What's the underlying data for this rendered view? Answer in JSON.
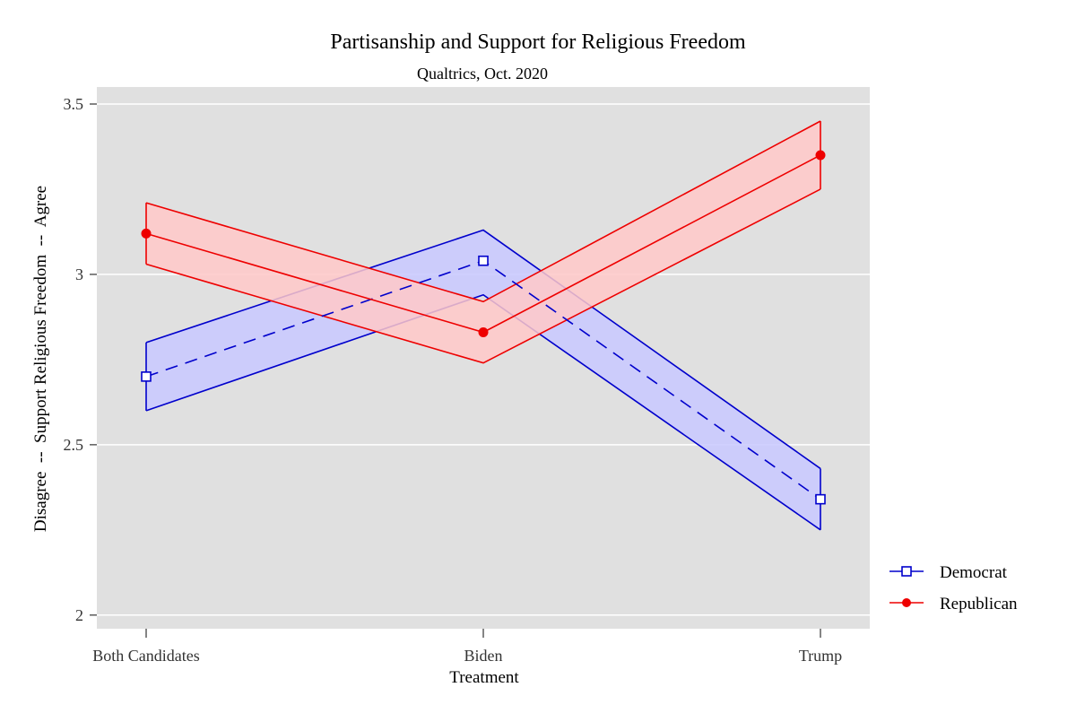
{
  "chart_data": {
    "type": "line",
    "title": "Partisanship and Support for Religious Freedom",
    "subtitle": "Qualtrics, Oct. 2020",
    "xlabel": "Treatment",
    "ylabel": "Disagree  --  Support Religious Freedom  --  Agree",
    "categories": [
      "Both Candidates",
      "Biden",
      "Trump"
    ],
    "ylim": [
      1.96,
      3.55
    ],
    "yticks": [
      2,
      2.5,
      3,
      3.5
    ],
    "ytick_labels": [
      "2",
      "2.5",
      "3",
      "3.5"
    ],
    "grid": "horizontal",
    "legend_position": "right",
    "series": [
      {
        "name": "Democrat",
        "values": [
          2.7,
          3.04,
          2.34
        ],
        "ci_lower": [
          2.6,
          2.94,
          2.25
        ],
        "ci_upper": [
          2.8,
          3.13,
          2.43
        ],
        "color": "#0000cc",
        "band_color": "#c8c8ff",
        "line_style": "dashed",
        "marker": "hollow-square"
      },
      {
        "name": "Republican",
        "values": [
          3.12,
          2.83,
          3.35
        ],
        "ci_lower": [
          3.03,
          2.74,
          3.25
        ],
        "ci_upper": [
          3.21,
          2.92,
          3.45
        ],
        "color": "#ee0000",
        "band_color": "#ffc8c8",
        "line_style": "solid",
        "marker": "filled-circle"
      }
    ]
  }
}
